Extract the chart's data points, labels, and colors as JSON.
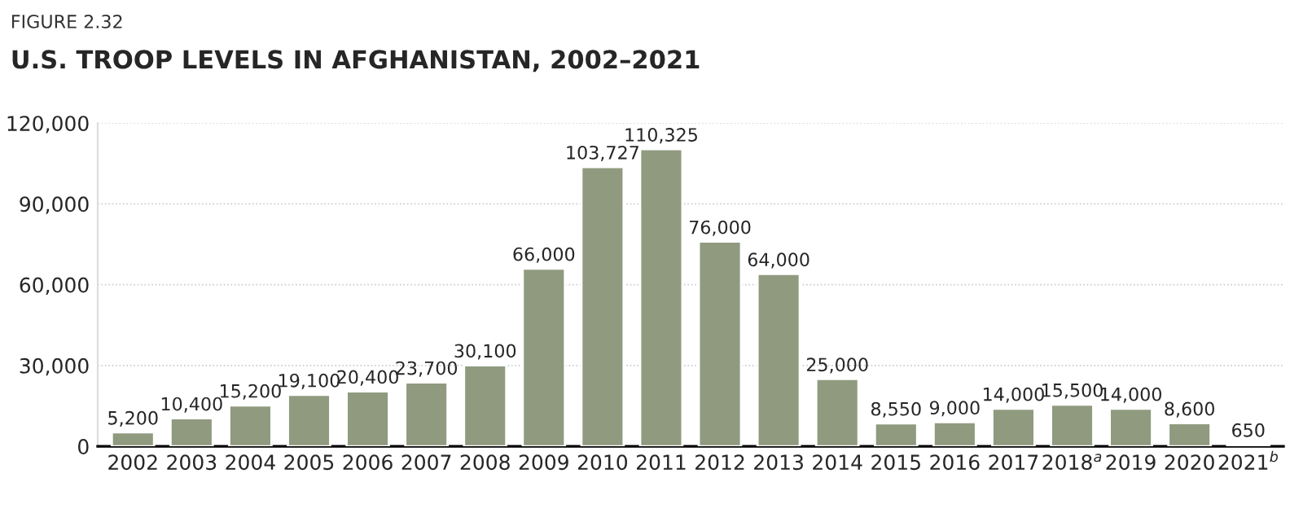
{
  "chart_data": {
    "type": "bar",
    "title": "U.S. TROOP LEVELS IN AFGHANISTAN, 2002–2021",
    "subtitle": "FIGURE 2.32",
    "categories": [
      "2002",
      "2003",
      "2004",
      "2005",
      "2006",
      "2007",
      "2008",
      "2009",
      "2010",
      "2011",
      "2012",
      "2013",
      "2014",
      "2015",
      "2016",
      "2017",
      "2018$^{a}$",
      "2019",
      "2020",
      "2021$^{b}$"
    ],
    "values": [
      5200,
      10400,
      15200,
      19100,
      20400,
      23700,
      30100,
      66000,
      103727,
      110325,
      76000,
      64000,
      25000,
      8550,
      9000,
      14000,
      15500,
      14000,
      8600,
      650
    ],
    "value_labels": [
      "5,200",
      "10,400",
      "15,200",
      "19,100",
      "20,400",
      "23,700",
      "30,100",
      "66,000",
      "103,727",
      "110,325",
      "76,000",
      "64,000",
      "25,000",
      "8,550",
      "9,000",
      "14,000",
      "15,500",
      "14,000",
      "8,600",
      "650"
    ],
    "color": "#8f9a7f",
    "ylim": [
      0,
      120000
    ],
    "yticks": [
      0,
      {
        "value": 30000,
        "label": "30,000"
      },
      {
        "value": 60000,
        "label": "60,000"
      },
      {
        "value": 90000,
        "label": "90,000"
      },
      {
        "value": 120000,
        "label": "120,000"
      }
    ],
    "grid": "y"
  }
}
